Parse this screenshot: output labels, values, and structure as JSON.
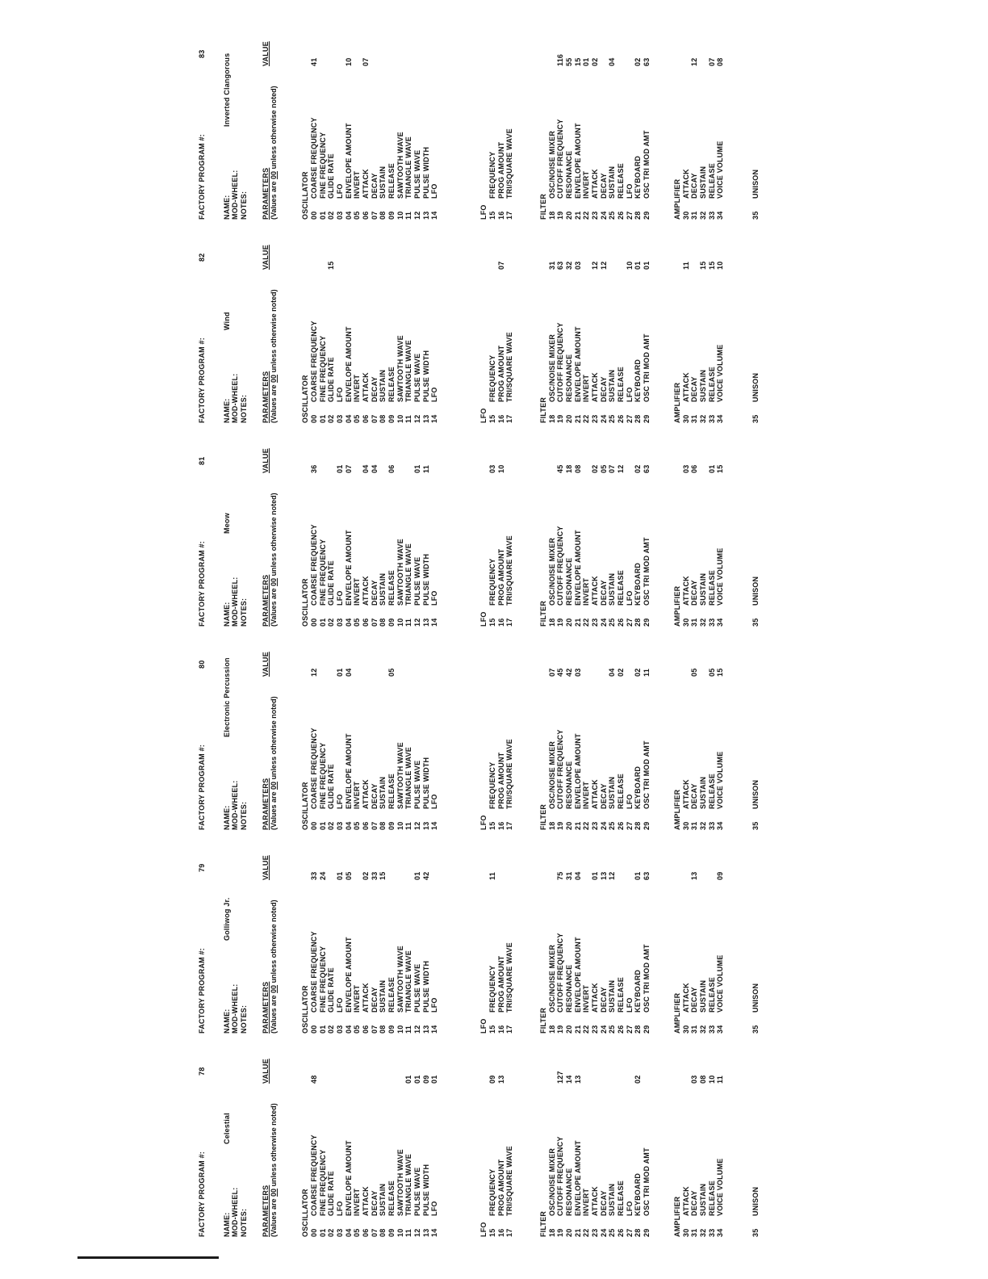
{
  "form": {
    "header_label": "FACTORY PROGRAM #:",
    "name_label": "NAME:",
    "modwheel_label": "MOD-WHEEL:",
    "notes_label": "NOTES:",
    "parameters_label": "PARAMETERS",
    "value_label": "VALUE",
    "values_note_prefix": "(Values are ",
    "values_note_00": "00",
    "values_note_suffix": " unless otherwise noted)",
    "unison_num": "35",
    "unison_label": "UNISON",
    "sections": [
      {
        "title": "OSCILLATOR",
        "rows": [
          [
            "00",
            "COARSE FREQUENCY"
          ],
          [
            "01",
            "FINE FREQUENCY"
          ],
          [
            "02",
            "GLIDE RATE"
          ],
          [
            "03",
            "LFO"
          ],
          [
            "04",
            "ENVELOPE AMOUNT"
          ],
          [
            "05",
            "INVERT"
          ],
          [
            "06",
            "ATTACK"
          ],
          [
            "07",
            "DECAY"
          ],
          [
            "08",
            "SUSTAIN"
          ],
          [
            "09",
            "RELEASE"
          ],
          [
            "10",
            "SAWTOOTH WAVE"
          ],
          [
            "11",
            "TRIANGLE WAVE"
          ],
          [
            "12",
            "PULSE WAVE"
          ],
          [
            "13",
            "PULSE WIDTH"
          ],
          [
            "14",
            "LFO"
          ]
        ]
      },
      {
        "title": "LFO",
        "rows": [
          [
            "15",
            "FREQUENCY"
          ],
          [
            "16",
            "PROG AMOUNT"
          ],
          [
            "17",
            "TRI/SQUARE WAVE"
          ]
        ]
      },
      {
        "title": "FILTER",
        "rows": [
          [
            "18",
            "OSC/NOISE MIXER"
          ],
          [
            "19",
            "CUTOFF FREQUENCY"
          ],
          [
            "20",
            "RESONANCE"
          ],
          [
            "21",
            "ENVELOPE AMOUNT"
          ],
          [
            "22",
            "INVERT"
          ],
          [
            "23",
            "ATTACK"
          ],
          [
            "24",
            "DECAY"
          ],
          [
            "25",
            "SUSTAIN"
          ],
          [
            "26",
            "RELEASE"
          ],
          [
            "27",
            "LFO"
          ],
          [
            "28",
            "KEYBOARD"
          ],
          [
            "29",
            "OSC TRI MOD AMT"
          ]
        ]
      },
      {
        "title": "AMPLIFIER",
        "rows": [
          [
            "30",
            "ATTACK"
          ],
          [
            "31",
            "DECAY"
          ],
          [
            "32",
            "SUSTAIN"
          ],
          [
            "33",
            "RELEASE"
          ],
          [
            "34",
            "VOICE VOLUME"
          ]
        ]
      }
    ]
  },
  "programs": [
    {
      "number": "78",
      "name": "Celestial",
      "values": {
        "00": "48",
        "11": "01",
        "12": "01",
        "13": "09",
        "14": "01",
        "15": "09",
        "16": "13",
        "19": "127",
        "20": "14",
        "21": "13",
        "28": "02",
        "31": "03",
        "32": "08",
        "33": "10",
        "34": "11"
      }
    },
    {
      "number": "79",
      "name": "Golliwog Jr.",
      "values": {
        "00": "33",
        "01": "24",
        "03": "01",
        "04": "05",
        "06": "02",
        "07": "33",
        "08": "15",
        "12": "01",
        "13": "42",
        "15": "11",
        "19": "75",
        "20": "31",
        "21": "04",
        "23": "01",
        "24": "13",
        "25": "12",
        "28": "01",
        "29": "63",
        "31": "13",
        "34": "09"
      }
    },
    {
      "number": "80",
      "name": "Electronic Percussion",
      "values": {
        "00": "12",
        "03": "01",
        "04": "04",
        "09": "05",
        "18": "07",
        "19": "45",
        "20": "42",
        "21": "03",
        "25": "04",
        "26": "02",
        "28": "02",
        "29": "11",
        "31": "05",
        "33": "05",
        "34": "15"
      }
    },
    {
      "number": "81",
      "name": "Meow",
      "values": {
        "00": "36",
        "03": "01",
        "04": "07",
        "06": "04",
        "07": "04",
        "09": "06",
        "12": "01",
        "13": "11",
        "15": "03",
        "16": "10",
        "19": "45",
        "20": "18",
        "21": "08",
        "23": "02",
        "24": "05",
        "25": "07",
        "26": "12",
        "28": "02",
        "29": "63",
        "30": "03",
        "31": "06",
        "33": "01",
        "34": "15"
      }
    },
    {
      "number": "82",
      "name": "Wind",
      "values": {
        "02": "15",
        "16": "07",
        "18": "31",
        "19": "63",
        "20": "32",
        "21": "03",
        "23": "12",
        "24": "12",
        "27": "10",
        "28": "01",
        "29": "01",
        "30": "11",
        "32": "15",
        "33": "15",
        "34": "10"
      }
    },
    {
      "number": "83",
      "name": "Inverted Clangorous",
      "values": {
        "00": "41",
        "04": "10",
        "06": "07",
        "19": "116",
        "20": "55",
        "21": "15",
        "22": "01",
        "23": "02",
        "25": "04",
        "28": "02",
        "29": "63",
        "31": "12",
        "33": "07",
        "34": "08"
      }
    }
  ],
  "layout": {
    "column_lefts": [
      52,
      304,
      556,
      808,
      1060,
      1312
    ]
  }
}
